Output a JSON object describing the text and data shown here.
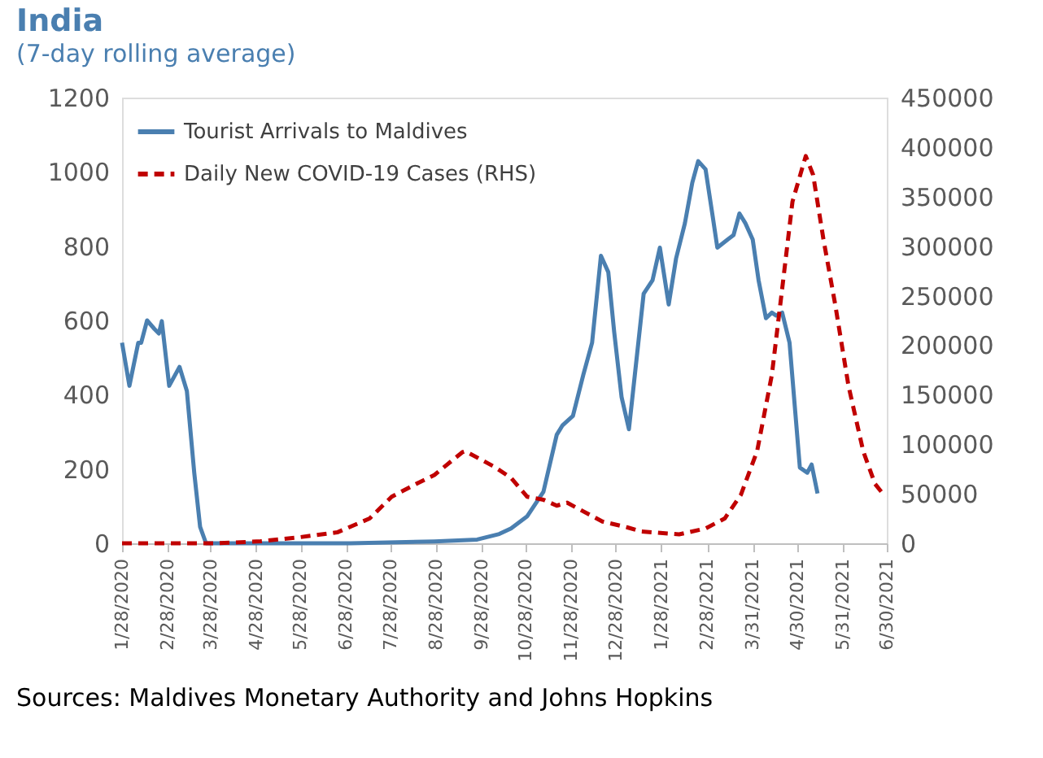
{
  "chart_data": {
    "type": "line",
    "title": "India",
    "subtitle": "(7-day rolling average)",
    "annotations": [
      "Sources: Maldives Monetary Authority and Johns Hopkins"
    ],
    "xlim": [
      "2020-01-28",
      "2021-06-30"
    ],
    "xticks": [
      {
        "value": "2020-01-28",
        "label": "1/28/2020"
      },
      {
        "value": "2020-02-28",
        "label": "2/28/2020"
      },
      {
        "value": "2020-03-28",
        "label": "3/28/2020"
      },
      {
        "value": "2020-04-28",
        "label": "4/28/2020"
      },
      {
        "value": "2020-05-28",
        "label": "5/28/2020"
      },
      {
        "value": "2020-06-28",
        "label": "6/28/2020"
      },
      {
        "value": "2020-07-28",
        "label": "7/28/2020"
      },
      {
        "value": "2020-08-28",
        "label": "8/28/2020"
      },
      {
        "value": "2020-09-28",
        "label": "9/28/2020"
      },
      {
        "value": "2020-10-28",
        "label": "10/28/2020"
      },
      {
        "value": "2020-11-28",
        "label": "11/28/2020"
      },
      {
        "value": "2020-12-28",
        "label": "12/28/2020"
      },
      {
        "value": "2021-01-28",
        "label": "1/28/2021"
      },
      {
        "value": "2021-02-28",
        "label": "2/28/2021"
      },
      {
        "value": "2021-03-31",
        "label": "3/31/2021"
      },
      {
        "value": "2021-04-30",
        "label": "4/30/2021"
      },
      {
        "value": "2021-05-31",
        "label": "5/31/2021"
      },
      {
        "value": "2021-06-30",
        "label": "6/30/2021"
      }
    ],
    "ylim": [
      0,
      1200
    ],
    "yticks": [
      0,
      200,
      400,
      600,
      800,
      1000,
      1200
    ],
    "y2lim": [
      0,
      450000
    ],
    "y2ticks": [
      0,
      50000,
      100000,
      150000,
      200000,
      250000,
      300000,
      350000,
      400000,
      450000
    ],
    "grid": false,
    "legend": "top left",
    "series": [
      {
        "name": "Tourist Arrivals to Maldives",
        "color": "#4a7fb0",
        "line_style": "solid",
        "x": [
          "2020-01-28",
          "2020-02-02",
          "2020-02-08",
          "2020-02-10",
          "2020-02-14",
          "2020-02-19",
          "2020-02-22",
          "2020-02-24",
          "2020-02-29",
          "2020-03-07",
          "2020-03-12",
          "2020-03-17",
          "2020-03-21",
          "2020-03-25",
          "2020-05-01",
          "2020-07-01",
          "2020-08-27",
          "2020-09-25",
          "2020-10-10",
          "2020-10-18",
          "2020-10-29",
          "2020-11-09",
          "2020-11-18",
          "2020-11-22",
          "2020-11-29",
          "2020-12-06",
          "2020-12-12",
          "2020-12-18",
          "2020-12-23",
          "2020-12-27",
          "2021-01-01",
          "2021-01-06",
          "2021-01-10",
          "2021-01-16",
          "2021-01-22",
          "2021-01-27",
          "2021-02-02",
          "2021-02-07",
          "2021-02-13",
          "2021-02-18",
          "2021-02-22",
          "2021-02-27",
          "2021-03-04",
          "2021-03-07",
          "2021-03-14",
          "2021-03-18",
          "2021-03-22",
          "2021-03-26",
          "2021-03-31",
          "2021-04-04",
          "2021-04-09",
          "2021-04-13",
          "2021-04-16",
          "2021-04-20",
          "2021-04-25",
          "2021-05-02",
          "2021-05-07",
          "2021-05-10",
          "2021-05-14"
        ],
        "values": [
          540,
          424,
          540,
          540,
          600,
          577,
          565,
          598,
          424,
          475,
          410,
          190,
          44,
          0,
          0,
          0,
          5,
          10,
          25,
          40,
          73,
          139,
          292,
          318,
          343,
          453,
          540,
          774,
          730,
          569,
          394,
          307,
          453,
          672,
          708,
          796,
          643,
          767,
          862,
          971,
          1029,
          1007,
          876,
          796,
          818,
          830,
          888,
          862,
          818,
          708,
          606,
          621,
          613,
          621,
          540,
          204,
          190,
          212,
          134
        ]
      },
      {
        "name": "Daily New COVID-19 Cases (RHS)",
        "color": "#c00000",
        "line_style": "dashed",
        "axis": "y2",
        "x": [
          "2020-01-28",
          "2020-04-01",
          "2020-05-01",
          "2020-05-27",
          "2020-06-22",
          "2020-07-14",
          "2020-07-29",
          "2020-08-16",
          "2020-08-27",
          "2020-09-15",
          "2020-09-17",
          "2020-10-07",
          "2020-10-18",
          "2020-10-29",
          "2020-11-09",
          "2020-11-18",
          "2020-11-25",
          "2020-12-19",
          "2021-01-05",
          "2021-01-14",
          "2021-02-09",
          "2021-02-27",
          "2021-03-12",
          "2021-03-23",
          "2021-04-03",
          "2021-04-13",
          "2021-04-20",
          "2021-04-27",
          "2021-05-06",
          "2021-05-11",
          "2021-05-18",
          "2021-05-26",
          "2021-06-04",
          "2021-06-14",
          "2021-06-22",
          "2021-06-29"
        ],
        "values": [
          0,
          0,
          2000,
          6000,
          11000,
          25000,
          47000,
          61000,
          69000,
          92000,
          93000,
          77000,
          66000,
          47000,
          44000,
          38000,
          41000,
          22000,
          16000,
          12000,
          9000,
          15000,
          25000,
          49000,
          93000,
          170000,
          257000,
          345000,
          391000,
          372000,
          307000,
          241000,
          159000,
          93000,
          60000,
          47000
        ]
      }
    ]
  }
}
